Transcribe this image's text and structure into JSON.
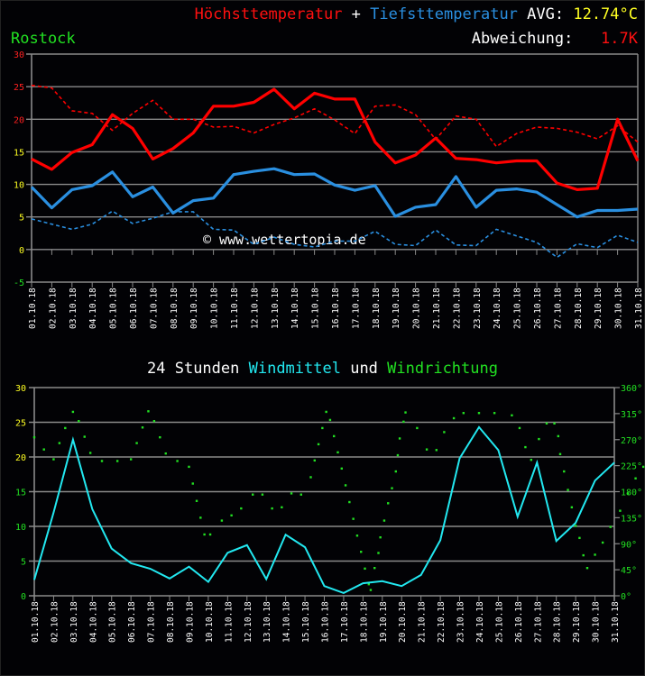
{
  "header": {
    "title_max": "Höchsttemperatur",
    "title_plus": " + ",
    "title_min": "Tiefsttemperatur",
    "avg_label": " AVG: ",
    "avg_value": "12.74°C",
    "station": "Rostock",
    "deviation_label": "Abweichung:  ",
    "deviation_value": " 1.7K"
  },
  "wind_header": {
    "prefix": "24 Stunden ",
    "windmittel": "Windmittel",
    "und": " und ",
    "windrichtung": "Windrichtung"
  },
  "watermark": "© www.wettertopia.de",
  "colors": {
    "max": "#ff0000",
    "min": "#2a8fe0",
    "wind": "#22e8f0",
    "direction": "#22e022",
    "grid": "#8a8a8a",
    "axis_red": "#ff2020",
    "axis_yellow": "#ffff22",
    "axis_green": "#22e022"
  },
  "chart_data": [
    {
      "type": "line",
      "title": "Höchsttemperatur + Tiefsttemperatur AVG: 12.74°C — Rostock — Abweichung: 1.7K",
      "xlabel": "",
      "ylabel": "°C",
      "ylim": [
        -5,
        30
      ],
      "yticks": [
        30,
        25,
        20,
        15,
        10,
        5,
        0,
        -5
      ],
      "grid": true,
      "categories": [
        "01.10.18",
        "02.10.18",
        "03.10.18",
        "04.10.18",
        "05.10.18",
        "06.10.18",
        "07.10.18",
        "08.10.18",
        "09.10.18",
        "10.10.18",
        "11.10.18",
        "12.10.18",
        "13.10.18",
        "14.10.18",
        "15.10.18",
        "16.10.18",
        "17.10.18",
        "18.10.18",
        "19.10.18",
        "20.10.18",
        "21.10.18",
        "22.10.18",
        "23.10.18",
        "24.10.18",
        "25.10.18",
        "26.10.18",
        "27.10.18",
        "28.10.18",
        "29.10.18",
        "30.10.18",
        "31.10.18"
      ],
      "series": [
        {
          "name": "Höchsttemperatur",
          "style": "solid",
          "color": "#ff0000",
          "values": [
            13.9,
            12.3,
            14.9,
            16.1,
            20.7,
            18.6,
            13.9,
            15.5,
            17.9,
            22.0,
            22.0,
            22.6,
            24.6,
            21.6,
            24.0,
            23.1,
            23.1,
            16.5,
            13.3,
            14.5,
            17.1,
            14.0,
            13.8,
            13.3,
            13.6,
            13.6,
            10.2,
            9.2,
            9.4,
            20.0,
            13.6
          ]
        },
        {
          "name": "Höchsttemperatur (Mittel)",
          "style": "dashed",
          "color": "#ff0000",
          "values": [
            25.2,
            24.8,
            21.3,
            20.9,
            18.3,
            20.9,
            22.9,
            20.0,
            20.0,
            18.8,
            18.9,
            17.9,
            19.2,
            20.2,
            21.6,
            19.9,
            17.8,
            22.0,
            22.2,
            20.7,
            16.9,
            20.5,
            20.0,
            15.8,
            17.8,
            18.8,
            18.6,
            18.0,
            17.0,
            19.0,
            16.5
          ]
        },
        {
          "name": "Tiefsttemperatur",
          "style": "solid",
          "color": "#2a8fe0",
          "values": [
            9.6,
            6.4,
            9.2,
            9.8,
            11.9,
            8.1,
            9.6,
            5.6,
            7.5,
            7.9,
            11.5,
            12.0,
            12.4,
            11.5,
            11.6,
            9.9,
            9.1,
            9.8,
            5.1,
            6.5,
            6.9,
            11.2,
            6.5,
            9.1,
            9.3,
            8.8,
            6.9,
            5.0,
            6.0,
            6.0,
            6.2
          ]
        },
        {
          "name": "Tiefsttemperatur (Mittel)",
          "style": "dashed",
          "color": "#2a8fe0",
          "values": [
            4.7,
            3.9,
            3.1,
            3.9,
            5.9,
            4.0,
            4.8,
            5.8,
            5.8,
            3.1,
            3.0,
            0.8,
            1.9,
            0.8,
            0.4,
            1.3,
            1.3,
            2.8,
            0.8,
            0.6,
            3.0,
            0.7,
            0.6,
            3.1,
            2.1,
            1.1,
            -1.2,
            0.9,
            0.3,
            2.2,
            1.1
          ]
        }
      ],
      "annotations": [
        "© www.wettertopia.de"
      ]
    },
    {
      "type": "line",
      "title": "24 Stunden Windmittel und Windrichtung",
      "ylim": [
        0,
        30
      ],
      "yticks": [
        30,
        25,
        20,
        15,
        10,
        5,
        0
      ],
      "y2lim": [
        0,
        360
      ],
      "y2ticks": [
        "360°",
        "315°",
        "270°",
        "225°",
        "180°",
        "135°",
        "90°",
        "45°",
        "0°"
      ],
      "grid": true,
      "categories": [
        "01.10.18",
        "02.10.18",
        "03.10.18",
        "04.10.18",
        "05.10.18",
        "06.10.18",
        "07.10.18",
        "08.10.18",
        "09.10.18",
        "10.10.18",
        "11.10.18",
        "12.10.18",
        "13.10.18",
        "14.10.18",
        "15.10.18",
        "16.10.18",
        "17.10.18",
        "18.10.18",
        "19.10.18",
        "20.10.18",
        "21.10.18",
        "22.10.18",
        "23.10.18",
        "24.10.18",
        "25.10.18",
        "26.10.18",
        "27.10.18",
        "28.10.18",
        "29.10.18",
        "30.10.18",
        "31.10.18"
      ],
      "series": [
        {
          "name": "Windmittel",
          "type": "line",
          "axis": "left",
          "color": "#22e8f0",
          "values": [
            2.3,
            12.0,
            22.5,
            12.5,
            6.8,
            4.7,
            3.9,
            2.5,
            4.2,
            2.0,
            6.2,
            7.3,
            2.4,
            8.8,
            7.0,
            1.4,
            0.4,
            1.8,
            2.1,
            1.4,
            3.0,
            8.0,
            19.8,
            24.3,
            21.0,
            11.4,
            19.2,
            7.9,
            10.5,
            16.6,
            19.2
          ]
        },
        {
          "name": "Windrichtung",
          "type": "scatter",
          "axis": "right",
          "color": "#22e022",
          "points": [
            [
              0,
              274
            ],
            [
              0.5,
              253
            ],
            [
              1,
              236
            ],
            [
              1.3,
              264
            ],
            [
              1.6,
              290
            ],
            [
              2,
              318
            ],
            [
              2.3,
              302
            ],
            [
              2.6,
              275
            ],
            [
              2.9,
              247
            ],
            [
              3.5,
              233
            ],
            [
              4.3,
              233
            ],
            [
              5,
              236
            ],
            [
              5.3,
              264
            ],
            [
              5.6,
              291
            ],
            [
              5.9,
              319
            ],
            [
              6.2,
              302
            ],
            [
              6.5,
              274
            ],
            [
              6.8,
              246
            ],
            [
              7.4,
              233
            ],
            [
              8,
              223
            ],
            [
              8.2,
              194
            ],
            [
              8.4,
              164
            ],
            [
              8.6,
              135
            ],
            [
              8.8,
              106
            ],
            [
              9.1,
              106
            ],
            [
              9.7,
              130
            ],
            [
              10.2,
              139
            ],
            [
              10.7,
              151
            ],
            [
              11.3,
              175
            ],
            [
              11.8,
              175
            ],
            [
              12.3,
              151
            ],
            [
              12.8,
              153
            ],
            [
              13.3,
              177
            ],
            [
              13.8,
              175
            ],
            [
              14.3,
              205
            ],
            [
              14.5,
              234
            ],
            [
              14.7,
              262
            ],
            [
              14.9,
              290
            ],
            [
              15.1,
              318
            ],
            [
              15.3,
              304
            ],
            [
              15.5,
              276
            ],
            [
              15.7,
              248
            ],
            [
              15.9,
              220
            ],
            [
              16.1,
              191
            ],
            [
              16.3,
              162
            ],
            [
              16.5,
              133
            ],
            [
              16.7,
              104
            ],
            [
              16.9,
              76
            ],
            [
              17.1,
              47
            ],
            [
              17.3,
              20
            ],
            [
              17.4,
              10
            ],
            [
              17.6,
              48
            ],
            [
              17.8,
              74
            ],
            [
              17.9,
              101
            ],
            [
              18.1,
              130
            ],
            [
              18.3,
              160
            ],
            [
              18.5,
              186
            ],
            [
              18.7,
              215
            ],
            [
              18.8,
              243
            ],
            [
              18.9,
              272
            ],
            [
              19.1,
              301
            ],
            [
              19.2,
              317
            ],
            [
              19.8,
              290
            ],
            [
              20.3,
              253
            ],
            [
              20.8,
              252
            ],
            [
              21.2,
              283
            ],
            [
              21.7,
              307
            ],
            [
              22.2,
              316
            ],
            [
              23,
              316
            ],
            [
              23.8,
              316
            ],
            [
              24.7,
              312
            ],
            [
              25.1,
              290
            ],
            [
              25.4,
              257
            ],
            [
              25.7,
              235
            ],
            [
              26.1,
              271
            ],
            [
              26.5,
              298
            ],
            [
              26.9,
              298
            ],
            [
              27.1,
              276
            ],
            [
              27.2,
              245
            ],
            [
              27.4,
              215
            ],
            [
              27.6,
              183
            ],
            [
              27.8,
              153
            ],
            [
              28,
              121
            ],
            [
              28.2,
              100
            ],
            [
              28.4,
              70
            ],
            [
              28.6,
              48
            ],
            [
              29,
              71
            ],
            [
              29.4,
              92
            ],
            [
              29.8,
              119
            ],
            [
              30.3,
              147
            ],
            [
              30.7,
              177
            ],
            [
              31.1,
              203
            ],
            [
              31.5,
              223
            ]
          ]
        }
      ]
    }
  ]
}
